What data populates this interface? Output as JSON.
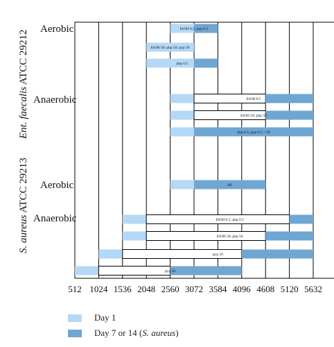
{
  "colors": {
    "day1": "#b5d8f6",
    "day7": "#6fa6d2",
    "plain": "#ffffff",
    "line": "#000000"
  },
  "chart_data": {
    "type": "range-bar",
    "x_ticks": [
      512,
      1024,
      1536,
      2048,
      2560,
      3072,
      3584,
      4096,
      4608,
      5120,
      5632
    ],
    "columns": 11,
    "groups": [
      {
        "organism": "Ent. faecalis",
        "strain": "ATCC 29212"
      },
      {
        "organism": "S. aureus",
        "strain": "ATCC 29213"
      }
    ],
    "conditions": [
      "Aerobic",
      "Anaerobic",
      "Aerobic",
      "Anaerobic"
    ],
    "bars": [
      {
        "label": "EtOH 0.5; pyp 0.5",
        "row": 0,
        "segments": [
          {
            "from": 2560,
            "to": 3072,
            "kind": "day1"
          },
          {
            "from": 3072,
            "to": 3584,
            "kind": "day7"
          }
        ]
      },
      {
        "label": "EtOH 50; php 50; pyp 50",
        "row": 1,
        "segments": [
          {
            "from": 2048,
            "to": 3072,
            "kind": "day1"
          }
        ]
      },
      {
        "label": "php 0.5",
        "row": 2,
        "segments": [
          {
            "from": 2048,
            "to": 3072,
            "kind": "day1"
          },
          {
            "from": 3072,
            "to": 3584,
            "kind": "day7"
          }
        ]
      },
      {
        "label": "EtOH 0.5",
        "row": 3,
        "segments": [
          {
            "from": 2560,
            "to": 3072,
            "kind": "day1"
          },
          {
            "from": 3072,
            "to": 4608,
            "kind": "plain"
          },
          {
            "from": 4608,
            "to": 5632,
            "kind": "day7"
          }
        ]
      },
      {
        "label": "EtOH 50; php 50",
        "row": 4,
        "segments": [
          {
            "from": 2560,
            "to": 3072,
            "kind": "day1"
          },
          {
            "from": 3072,
            "to": 4608,
            "kind": "plain"
          },
          {
            "from": 4608,
            "to": 5632,
            "kind": "day7"
          }
        ]
      },
      {
        "label": "php 0.5; pyp 0.5 + 50",
        "row": 5,
        "segments": [
          {
            "from": 2560,
            "to": 3072,
            "kind": "day1"
          },
          {
            "from": 3072,
            "to": 5632,
            "kind": "day7"
          }
        ]
      },
      {
        "label": "All",
        "row": 6,
        "segments": [
          {
            "from": 2560,
            "to": 3072,
            "kind": "day1"
          },
          {
            "from": 3072,
            "to": 4608,
            "kind": "day7"
          }
        ]
      },
      {
        "label": "EtOH 0.5; php 0.5",
        "row": 7,
        "segments": [
          {
            "from": 1536,
            "to": 2048,
            "kind": "day1"
          },
          {
            "from": 2048,
            "to": 5120,
            "kind": "plain"
          },
          {
            "from": 5120,
            "to": 5632,
            "kind": "day7"
          }
        ]
      },
      {
        "label": "EtOH 50; php 50",
        "row": 8,
        "segments": [
          {
            "from": 1536,
            "to": 2048,
            "kind": "day1"
          },
          {
            "from": 2048,
            "to": 4608,
            "kind": "plain"
          },
          {
            "from": 4608,
            "to": 5632,
            "kind": "day7"
          }
        ]
      },
      {
        "label": "pyp 50",
        "row": 9,
        "segments": [
          {
            "from": 1024,
            "to": 1536,
            "kind": "day1"
          },
          {
            "from": 1536,
            "to": 4096,
            "kind": "plain"
          },
          {
            "from": 4096,
            "to": 5632,
            "kind": "day7"
          }
        ]
      },
      {
        "label": "pyp 50",
        "row": 10,
        "segments": [
          {
            "from": 512,
            "to": 1024,
            "kind": "day1"
          },
          {
            "from": 1024,
            "to": 2560,
            "kind": "plain"
          },
          {
            "from": 2560,
            "to": 4096,
            "kind": "day7"
          }
        ]
      }
    ],
    "legend": [
      {
        "key": "day1",
        "text": "Day 1"
      },
      {
        "key": "day7",
        "text": "Day 7 or 14 (",
        "italic": "S. aureus",
        "suffix": ")"
      }
    ]
  }
}
